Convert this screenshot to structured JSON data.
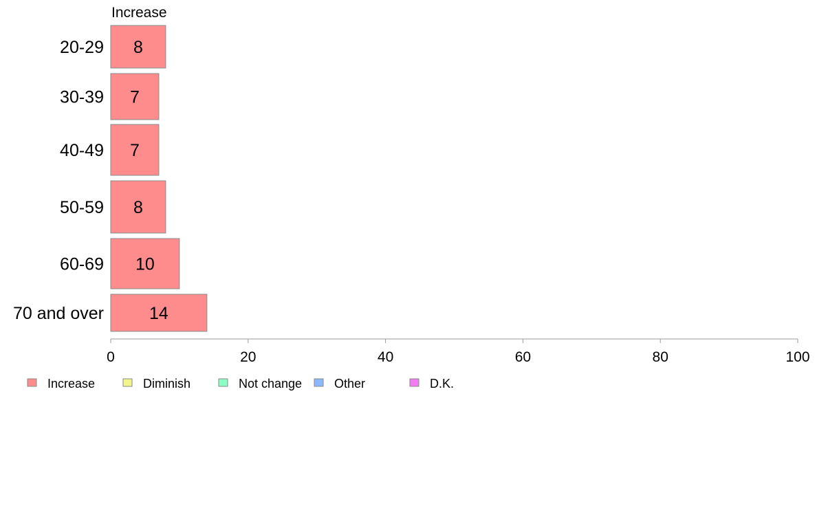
{
  "chart_data": {
    "type": "bar",
    "orientation": "horizontal",
    "stacked": true,
    "categories": [
      "20-29",
      "30-39",
      "40-49",
      "50-59",
      "60-69",
      "70 and over"
    ],
    "series": [
      {
        "name": "Increase",
        "values": [
          8,
          7,
          7,
          8,
          10,
          14
        ],
        "color": "#ff8c8c"
      }
    ],
    "shown_series_label": "Increase",
    "data_labels": [
      "8",
      "7",
      "7",
      "8",
      "10",
      "14"
    ],
    "xlim": [
      0,
      100
    ],
    "xticks": [
      0,
      20,
      40,
      60,
      80,
      100
    ],
    "grid": false,
    "legend_position": "bottom",
    "legend": [
      {
        "label": "Increase",
        "color": "#ff8c8c"
      },
      {
        "label": "Diminish",
        "color": "#f2f58a"
      },
      {
        "label": "Not change",
        "color": "#8cffc6"
      },
      {
        "label": "Other",
        "color": "#8cb8ff"
      },
      {
        "label": "D.K.",
        "color": "#f27cf2"
      }
    ]
  }
}
